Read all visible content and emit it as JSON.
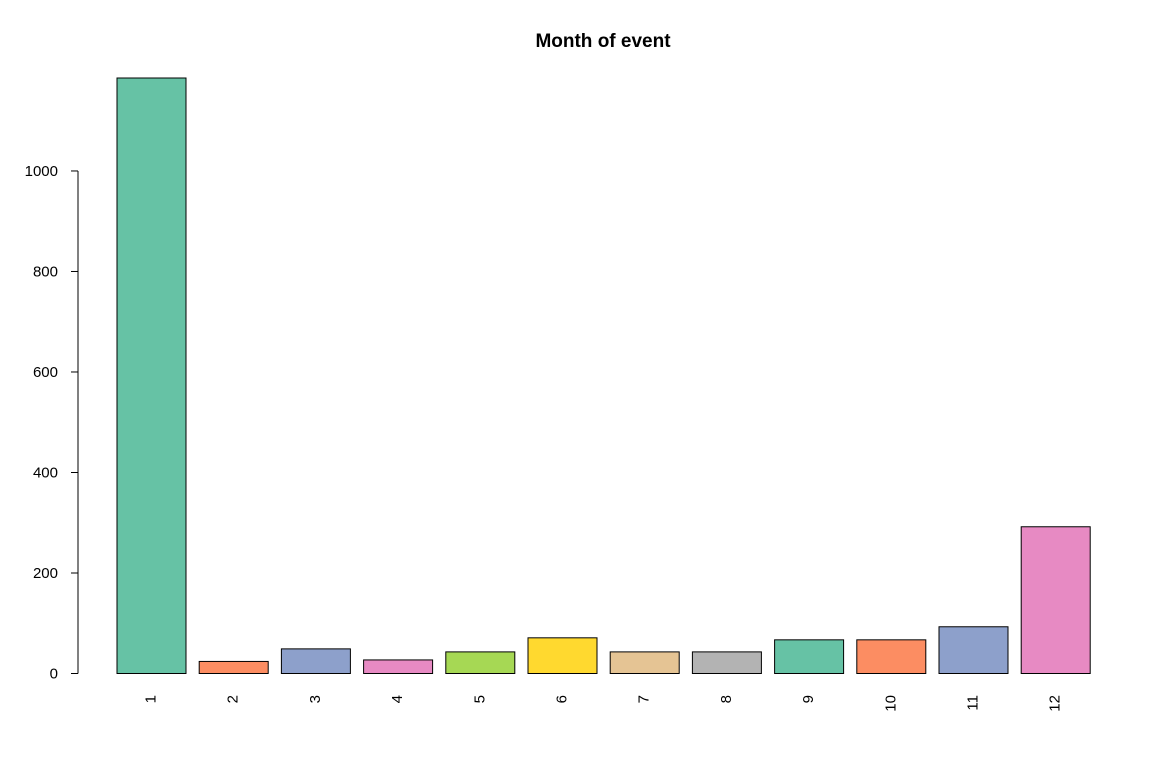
{
  "chart_data": {
    "type": "bar",
    "title": "Month of event",
    "xlabel": "",
    "ylabel": "",
    "categories": [
      "1",
      "2",
      "3",
      "4",
      "5",
      "6",
      "7",
      "8",
      "9",
      "10",
      "11",
      "12"
    ],
    "values": [
      1185,
      24,
      49,
      27,
      43,
      71,
      43,
      43,
      67,
      67,
      93,
      292
    ],
    "colors": [
      "#66C2A5",
      "#FC8D62",
      "#8DA0CB",
      "#E78AC3",
      "#A6D854",
      "#FFD92F",
      "#E5C494",
      "#B3B3B3",
      "#66C2A5",
      "#FC8D62",
      "#8DA0CB",
      "#E78AC3"
    ],
    "ylim": [
      0,
      1185
    ],
    "yticks": [
      0,
      200,
      400,
      600,
      800,
      1000
    ],
    "grid": false,
    "legend": "none"
  }
}
